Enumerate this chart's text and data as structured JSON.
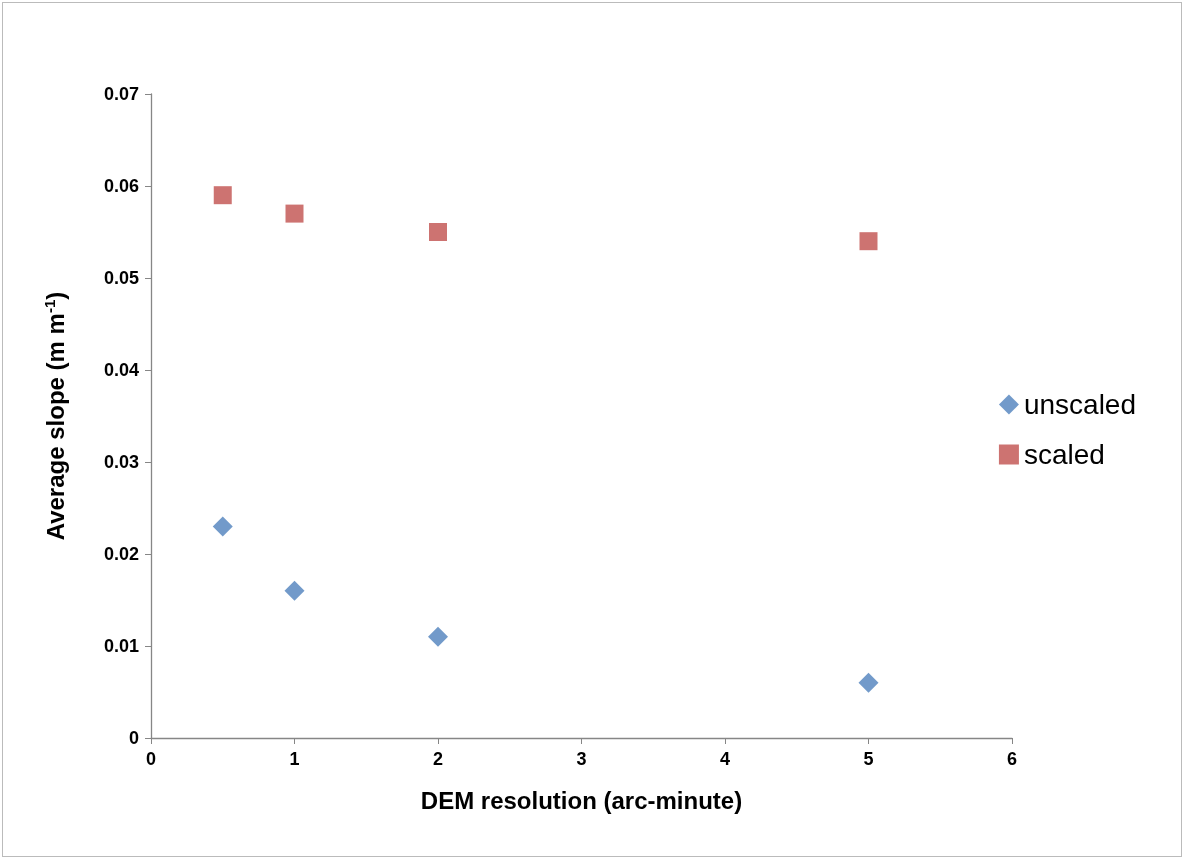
{
  "chart_data": {
    "type": "scatter",
    "xlabel": "DEM resolution (arc-minute)",
    "ylabel": "Average slope (m m$^{-1}$)",
    "x": [
      0.5,
      1,
      2,
      5
    ],
    "series": [
      {
        "name": "unscaled",
        "color": "#4f81bd",
        "marker": "diamond",
        "values": [
          0.023,
          0.016,
          0.011,
          0.006
        ]
      },
      {
        "name": "scaled",
        "color": "#c0504d",
        "marker": "square",
        "values": [
          0.059,
          0.057,
          0.055,
          0.054
        ]
      }
    ],
    "xlim": [
      0,
      6
    ],
    "xticks": [
      0,
      1,
      2,
      3,
      4,
      5,
      6
    ],
    "ylim": [
      0,
      0.07
    ],
    "yticks": [
      0,
      0.01,
      0.02,
      0.03,
      0.04,
      0.05,
      0.06,
      0.07
    ],
    "grid": false,
    "legend": "right"
  }
}
